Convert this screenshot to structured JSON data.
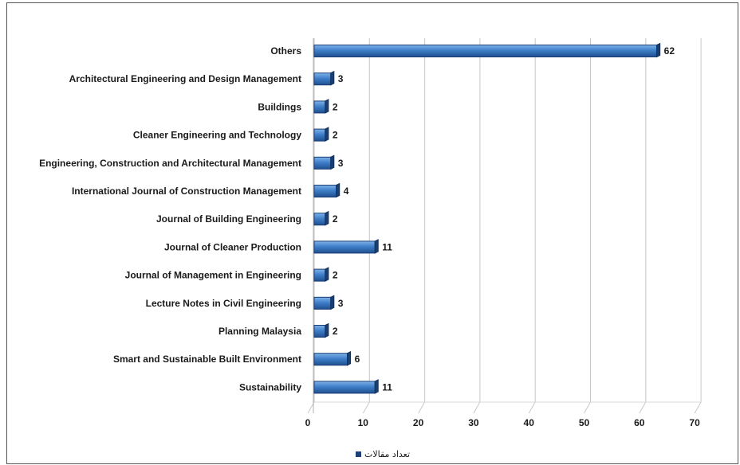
{
  "chart_data": {
    "type": "bar",
    "orientation": "horizontal",
    "categories": [
      "Others",
      "Architectural Engineering and Design Management",
      "Buildings",
      "Cleaner Engineering and Technology",
      "Engineering, Construction and Architectural Management",
      "International Journal of Construction Management",
      "Journal of Building Engineering",
      "Journal of Cleaner Production",
      "Journal of Management in Engineering",
      "Lecture Notes in Civil Engineering",
      "Planning Malaysia",
      "Smart and Sustainable Built Environment",
      "Sustainability"
    ],
    "series": [
      {
        "name": "تعداد مقالات",
        "values": [
          62,
          3,
          2,
          2,
          3,
          4,
          2,
          11,
          2,
          3,
          2,
          6,
          11
        ],
        "color": "#3f7fc9"
      }
    ],
    "xticks": [
      0,
      10,
      20,
      30,
      40,
      50,
      60,
      70
    ],
    "xlim": [
      0,
      70
    ],
    "grid": true,
    "legend_position": "bottom-center"
  }
}
